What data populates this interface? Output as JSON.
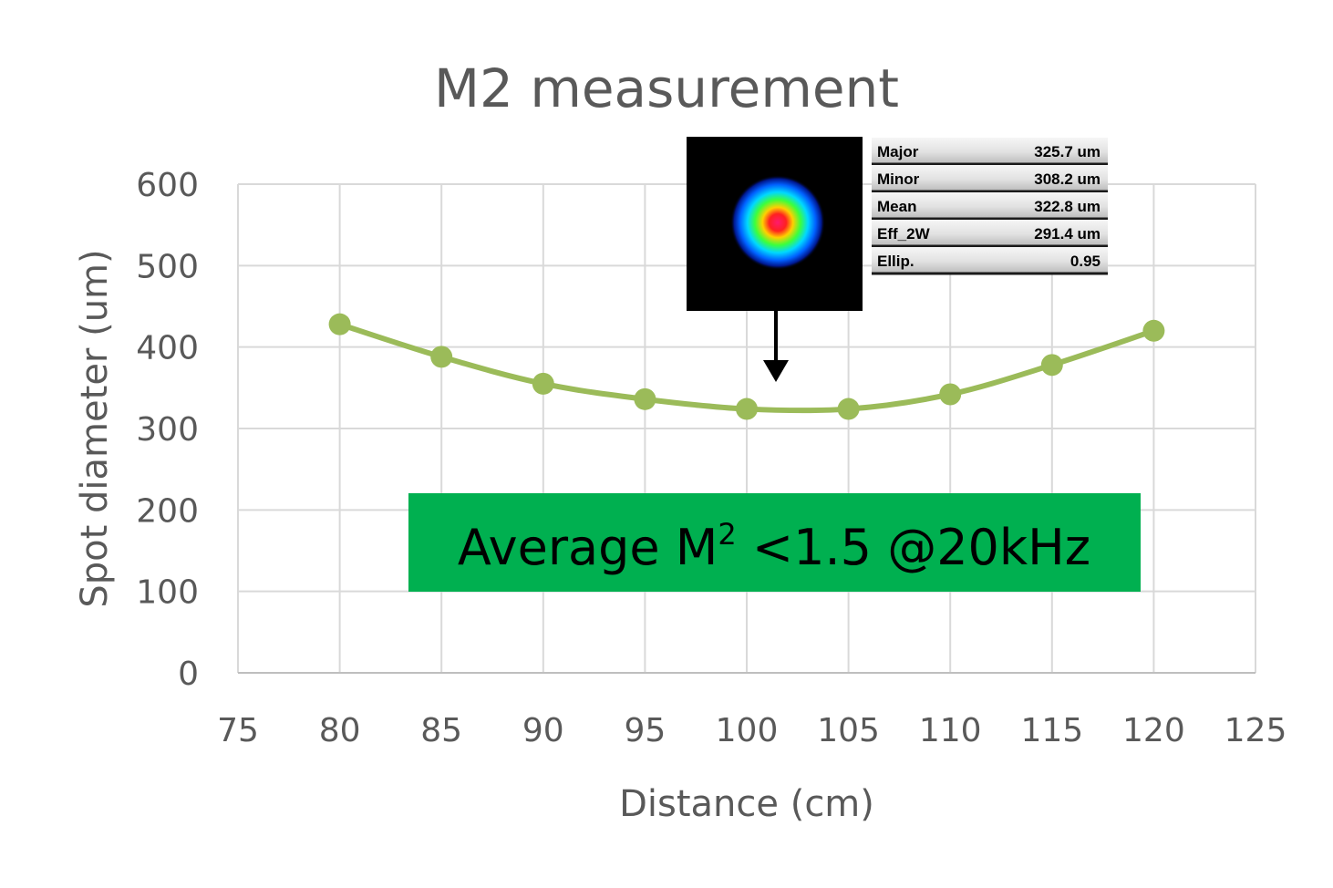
{
  "chart_data": {
    "type": "line",
    "title": "M2 measurement",
    "xlabel": "Distance (cm)",
    "ylabel": "Spot diameter (um)",
    "xlim": [
      75,
      125
    ],
    "ylim": [
      0,
      600
    ],
    "x_ticks": [
      "75",
      "80",
      "85",
      "90",
      "95",
      "100",
      "105",
      "110",
      "115",
      "120",
      "125"
    ],
    "y_ticks": [
      "0",
      "100",
      "200",
      "300",
      "400",
      "500",
      "600"
    ],
    "grid": true,
    "smoothed": true,
    "series": [
      {
        "color": "#9bbb59",
        "points": [
          {
            "x": 80,
            "y": 428
          },
          {
            "x": 85,
            "y": 388
          },
          {
            "x": 90,
            "y": 355
          },
          {
            "x": 95,
            "y": 336
          },
          {
            "x": 100,
            "y": 324
          },
          {
            "x": 105,
            "y": 324
          },
          {
            "x": 110,
            "y": 342
          },
          {
            "x": 115,
            "y": 378
          },
          {
            "x": 120,
            "y": 420
          }
        ]
      }
    ]
  },
  "annotation": {
    "prefix": "Average M",
    "superscript": "2",
    "suffix": " <1.5 @20kHz",
    "background_color": "#00b050"
  },
  "beam_profile": {
    "background_color": "#000000",
    "arrow_color": "#000000",
    "stats": [
      {
        "label": "Major",
        "value": "325.7 um"
      },
      {
        "label": "Minor",
        "value": "308.2 um"
      },
      {
        "label": "Mean",
        "value": "322.8 um"
      },
      {
        "label": "Eff_2W",
        "value": "291.4 um"
      },
      {
        "label": "Ellip.",
        "value": "0.95"
      }
    ]
  }
}
